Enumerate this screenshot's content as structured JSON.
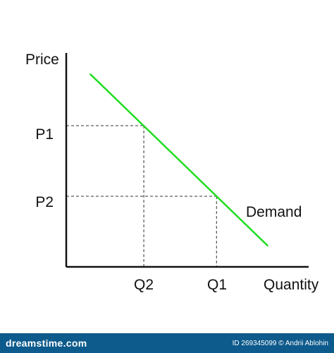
{
  "chart_data": {
    "type": "line",
    "title": "",
    "xlabel": "Quantity",
    "ylabel": "Price",
    "xlim": [
      0,
      10
    ],
    "ylim": [
      0,
      10
    ],
    "grid": false,
    "series": [
      {
        "name": "Demand",
        "color": "#22dd22",
        "x": [
          1,
          8.3
        ],
        "y": [
          9,
          1
        ]
      }
    ],
    "reference_points": [
      {
        "x_label": "Q2",
        "y_label": "P1",
        "x": 3.2,
        "y": 6.6
      },
      {
        "x_label": "Q1",
        "y_label": "P2",
        "x": 6.2,
        "y": 3.3
      }
    ],
    "axis_color": "#111111",
    "guide_line_style": "dashed"
  },
  "footer": {
    "brand": "dreamstime.com",
    "id_text": "ID 269345099",
    "separator": "©",
    "author": "Andrii Ablohin",
    "background": "#0d5a8c"
  }
}
